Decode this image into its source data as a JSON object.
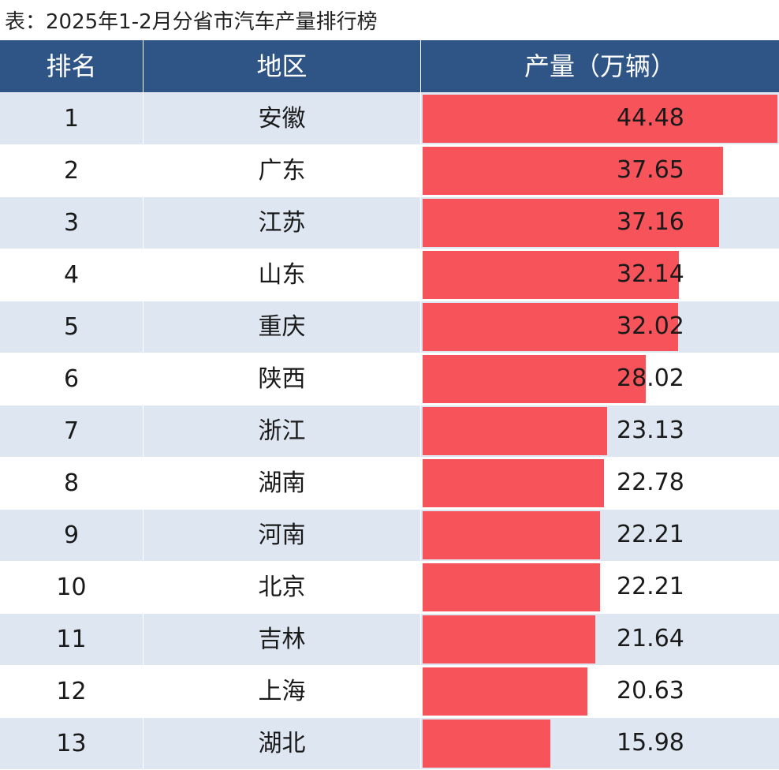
{
  "title": "表：2025年1-2月分省市汽车产量排行榜",
  "colors": {
    "header_bg": "#2f5587",
    "row_stripe": "#dde6f1",
    "bar": "#f6545a"
  },
  "chart_data": {
    "type": "table",
    "title": "表：2025年1-2月分省市汽车产量排行榜",
    "columns": [
      "排名",
      "地区",
      "产量（万辆）"
    ],
    "max_value": 44.48,
    "rows": [
      {
        "rank": "1",
        "region": "安徽",
        "value": 44.48
      },
      {
        "rank": "2",
        "region": "广东",
        "value": 37.65
      },
      {
        "rank": "3",
        "region": "江苏",
        "value": 37.16
      },
      {
        "rank": "4",
        "region": "山东",
        "value": 32.14
      },
      {
        "rank": "5",
        "region": "重庆",
        "value": 32.02
      },
      {
        "rank": "6",
        "region": "陕西",
        "value": 28.02
      },
      {
        "rank": "7",
        "region": "浙江",
        "value": 23.13
      },
      {
        "rank": "8",
        "region": "湖南",
        "value": 22.78
      },
      {
        "rank": "9",
        "region": "河南",
        "value": 22.21
      },
      {
        "rank": "10",
        "region": "北京",
        "value": 22.21
      },
      {
        "rank": "11",
        "region": "吉林",
        "value": 21.64
      },
      {
        "rank": "12",
        "region": "上海",
        "value": 20.63
      },
      {
        "rank": "13",
        "region": "湖北",
        "value": 15.98
      }
    ]
  }
}
